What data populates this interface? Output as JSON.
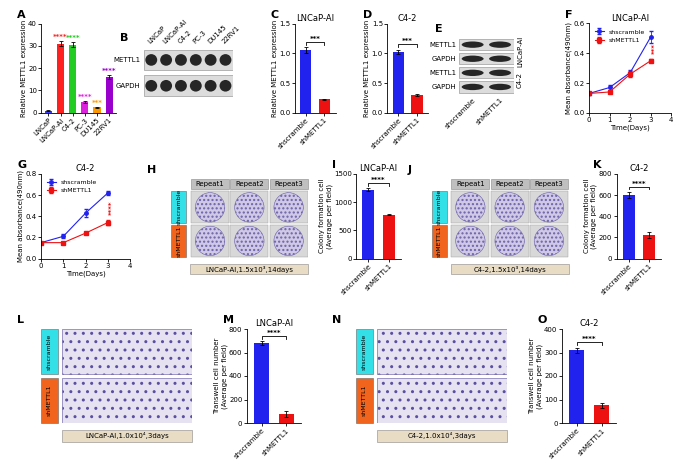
{
  "chart_data": [
    {
      "panel": "A",
      "type": "bar",
      "ylabel": "Relative METTL1 expression",
      "categories": [
        "LNCaP",
        "LNCaP-AI",
        "C4-2",
        "PC-3",
        "DU145",
        "22RV1"
      ],
      "values": [
        1.0,
        31.0,
        30.5,
        5.0,
        2.5,
        16.0
      ],
      "errors": [
        0.2,
        1.0,
        1.2,
        0.5,
        0.3,
        0.8
      ],
      "colors": [
        "#3b3bff",
        "#ff2020",
        "#22cc22",
        "#dd22dd",
        "#ff9900",
        "#9900cc"
      ],
      "significance": [
        null,
        "****",
        "****",
        "****",
        "***",
        "****"
      ],
      "ylim": [
        0,
        40
      ],
      "yticks": [
        0,
        10,
        20,
        30,
        40
      ]
    },
    {
      "panel": "C",
      "type": "bar",
      "title": "LNCaP-AI",
      "ylabel": "Relative METTL1 expression",
      "categories": [
        "shscramble",
        "shMETTL1"
      ],
      "values": [
        1.05,
        0.23
      ],
      "errors": [
        0.05,
        0.01
      ],
      "colors": [
        "#2222ee",
        "#ee1111"
      ],
      "significance": "***",
      "ylim": [
        0,
        1.5
      ],
      "yticks": [
        {
          "value": 0,
          "label": "0.0"
        },
        0.5,
        {
          "value": 1,
          "label": "1.0"
        },
        1.5
      ]
    },
    {
      "panel": "D",
      "type": "bar",
      "title": "C4-2",
      "ylabel": "Relative METTL1 expression",
      "categories": [
        "shscramble",
        "shMETTL1"
      ],
      "values": [
        1.02,
        0.3
      ],
      "errors": [
        0.04,
        0.02
      ],
      "colors": [
        "#2222ee",
        "#ee1111"
      ],
      "significance": "***",
      "ylim": [
        0,
        1.5
      ],
      "yticks": [
        {
          "value": 0,
          "label": "0.0"
        },
        0.5,
        {
          "value": 1,
          "label": "1.0"
        },
        1.5
      ]
    },
    {
      "panel": "F",
      "type": "line",
      "title": "LNCaP-AI",
      "xlabel": "Time(Days)",
      "ylabel": "Mean absorbance(490nm)",
      "x": [
        0,
        1,
        2,
        3
      ],
      "series": [
        {
          "name": "shscramble",
          "color": "#2222ee",
          "marker": "o",
          "values": [
            0.13,
            0.17,
            0.27,
            0.51
          ],
          "errors": [
            0.01,
            0.02,
            0.02,
            0.04
          ]
        },
        {
          "name": "shMETTL1",
          "color": "#ee1111",
          "marker": "s",
          "values": [
            0.13,
            0.14,
            0.26,
            0.35
          ],
          "errors": [
            0.01,
            0.01,
            0.02,
            0.01
          ]
        }
      ],
      "significance": "***",
      "legend": "upper left",
      "xlim": [
        0,
        4
      ],
      "xticks": [
        0,
        1,
        2,
        3,
        4
      ],
      "ylim": [
        0,
        0.6
      ],
      "yticks": [
        {
          "value": 0,
          "label": "0.0"
        },
        0.2,
        0.4,
        0.6
      ]
    },
    {
      "panel": "G",
      "type": "line",
      "title": "C4-2",
      "xlabel": "Time(Days)",
      "ylabel": "Mean absorbance(490nm)",
      "x": [
        0,
        1,
        2,
        3
      ],
      "series": [
        {
          "name": "shscramble",
          "color": "#2222ee",
          "marker": "o",
          "values": [
            0.15,
            0.21,
            0.43,
            0.62
          ],
          "errors": [
            0.01,
            0.02,
            0.04,
            0.02
          ]
        },
        {
          "name": "shMETTL1",
          "color": "#ee1111",
          "marker": "s",
          "values": [
            0.15,
            0.15,
            0.24,
            0.34
          ],
          "errors": [
            0.01,
            0.01,
            0.01,
            0.02
          ]
        }
      ],
      "significance": "****",
      "legend": "upper left",
      "xlim": [
        0,
        4
      ],
      "xticks": [
        0,
        1,
        2,
        3,
        4
      ],
      "ylim": [
        0,
        0.8
      ],
      "yticks": [
        {
          "value": 0,
          "label": "0.0"
        },
        0.2,
        0.4,
        0.6,
        0.8
      ]
    },
    {
      "panel": "I",
      "type": "bar",
      "title": "LNCaP-AI",
      "ylabel": "Colony formation cell\n(Average per field)",
      "categories": [
        "shscramble",
        "shMETTL1"
      ],
      "values": [
        1220,
        780
      ],
      "errors": [
        25,
        15
      ],
      "colors": [
        "#2222ee",
        "#ee1111"
      ],
      "significance": "****",
      "ylim": [
        0,
        1500
      ],
      "yticks": [
        0,
        500,
        1000,
        1500
      ]
    },
    {
      "panel": "K",
      "type": "bar",
      "title": "C4-2",
      "ylabel": "Colony formation cell\n(Average per field)",
      "categories": [
        "shscramble",
        "shMETTL1"
      ],
      "values": [
        600,
        220
      ],
      "errors": [
        30,
        30
      ],
      "colors": [
        "#2222ee",
        "#ee1111"
      ],
      "significance": "****",
      "ylim": [
        0,
        800
      ],
      "yticks": [
        0,
        200,
        400,
        600,
        800
      ]
    },
    {
      "panel": "M",
      "type": "bar",
      "title": "LNCaP-AI",
      "ylabel": "Transwell cell number\n(Average per field)",
      "categories": [
        "shscramble",
        "shMETTL1"
      ],
      "values": [
        680,
        75
      ],
      "errors": [
        15,
        25
      ],
      "colors": [
        "#2222ee",
        "#ee1111"
      ],
      "significance": "****",
      "ylim": [
        0,
        800
      ],
      "yticks": [
        0,
        200,
        400,
        600,
        800
      ]
    },
    {
      "panel": "O",
      "type": "bar",
      "title": "C4-2",
      "ylabel": "Transwell cell number\n(Average per field)",
      "categories": [
        "shscramble",
        "shMETTL1"
      ],
      "values": [
        310,
        75
      ],
      "errors": [
        10,
        10
      ],
      "colors": [
        "#2222ee",
        "#ee1111"
      ],
      "significance": "****",
      "ylim": [
        0,
        400
      ],
      "yticks": [
        0,
        100,
        200,
        300,
        400
      ]
    }
  ],
  "blots": [
    {
      "panel": "B",
      "rows": [
        "METTL1",
        "GAPDH"
      ],
      "lanes": [
        "LNCaP",
        "LNCaP-AI",
        "C4-2",
        "PC-3",
        "DU145",
        "22RV1"
      ]
    },
    {
      "panel": "E",
      "rows": [
        "METTL1",
        "GAPDH",
        "METTL1",
        "GAPDH"
      ],
      "groups": [
        "LNCaP-AI",
        "C4-2"
      ],
      "lanes": [
        "shscramble",
        "shMETTL1"
      ]
    }
  ],
  "images": [
    {
      "panel": "H",
      "columns": [
        "Repeat1",
        "Repeat2",
        "Repeat3"
      ],
      "rows": [
        "shscramble",
        "shMETTL1"
      ],
      "row_colors": [
        "#33e0e8",
        "#f0641e"
      ],
      "caption": "LNCaP-AI,1.5x10³,14days"
    },
    {
      "panel": "J",
      "columns": [
        "Repeat1",
        "Repeat2",
        "Repeat3"
      ],
      "rows": [
        "shscramble",
        "shMETTL1"
      ],
      "row_colors": [
        "#33e0e8",
        "#f0641e"
      ],
      "caption": "C4-2,1.5x10³,14days"
    },
    {
      "panel": "L",
      "rows": [
        "shscramble",
        "shMETTL1"
      ],
      "row_colors": [
        "#33e0e8",
        "#f0641e"
      ],
      "caption": "LNCaP-AI,1.0x10⁴,3days"
    },
    {
      "panel": "N",
      "rows": [
        "shscramble",
        "shMETTL1"
      ],
      "row_colors": [
        "#33e0e8",
        "#f0641e"
      ],
      "caption": "C4-2,1.0x10⁴,3days"
    }
  ]
}
